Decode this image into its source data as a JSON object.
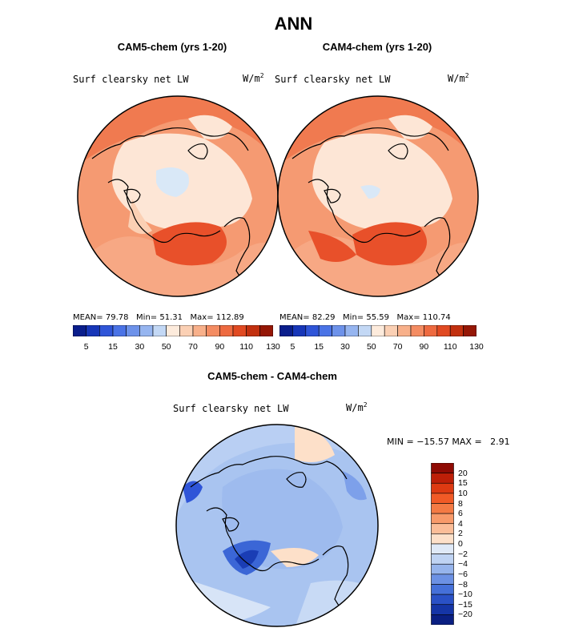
{
  "title": "ANN",
  "panels": [
    {
      "title": "CAM5-chem (yrs 1-20)",
      "variable": "Surf clearsky net LW",
      "units_base": "W/m",
      "units_exp": "2",
      "stats": {
        "mean_label": "MEAN=",
        "mean": "79.78",
        "min_label": "Min=",
        "min": "51.31",
        "max_label": "Max=",
        "max": "112.89"
      }
    },
    {
      "title": "CAM4-chem (yrs 1-20)",
      "variable": "Surf clearsky net LW",
      "units_base": "W/m",
      "units_exp": "2",
      "stats": {
        "mean_label": "MEAN=",
        "mean": "82.29",
        "min_label": "Min=",
        "min": "55.59",
        "max_label": "Max=",
        "max": "110.74"
      }
    }
  ],
  "colorbar_top": {
    "colors": [
      "#0a1e8c",
      "#1736b8",
      "#2f55d8",
      "#4a73e6",
      "#6d92ea",
      "#96b5f0",
      "#c3d8f5",
      "#fdebdc",
      "#fbd0b4",
      "#f8b08a",
      "#f48c62",
      "#ee6a40",
      "#e14a22",
      "#c2300f",
      "#951706"
    ],
    "tick_labels": [
      "5",
      "15",
      "30",
      "50",
      "70",
      "90",
      "110",
      "130"
    ]
  },
  "difference": {
    "title": "CAM5-chem - CAM4-chem",
    "variable": "Surf clearsky net LW",
    "units_base": "W/m",
    "units_exp": "2",
    "stats": {
      "min_label": "MIN =",
      "min": "−15.57",
      "max_label": "MAX =",
      "max": "2.91"
    },
    "colorbar": {
      "colors": [
        "#8f0b04",
        "#bd1f08",
        "#dd3a12",
        "#f15a26",
        "#f47a44",
        "#f89a6a",
        "#fbbd98",
        "#fde0c9",
        "#dfe9f7",
        "#bfd3f3",
        "#96b4ec",
        "#6c91e4",
        "#4570d9",
        "#2a51c6",
        "#1535a6",
        "#0a1f82"
      ],
      "labels": [
        "20",
        "15",
        "10",
        "8",
        "6",
        "4",
        "2",
        "0",
        "−2",
        "−4",
        "−6",
        "−8",
        "−10",
        "−15",
        "−20"
      ]
    }
  },
  "colors": {
    "ocean_warm": "#f48c62",
    "land_pale": "#fde6d6",
    "ice_blue": "#d9e8f7",
    "diff_blue": "#9ebbee"
  }
}
